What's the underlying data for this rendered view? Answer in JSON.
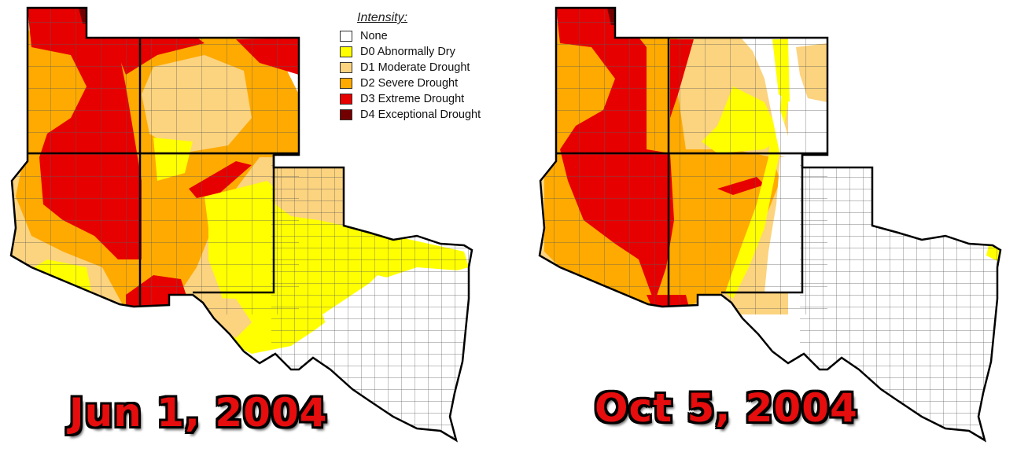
{
  "legend": {
    "title": "Intensity:",
    "items": [
      {
        "label": "None",
        "color": "#ffffff"
      },
      {
        "label": "D0 Abnormally Dry",
        "color": "#ffff00"
      },
      {
        "label": "D1 Moderate Drought",
        "color": "#fcd37f"
      },
      {
        "label": "D2 Severe Drought",
        "color": "#ffaa00"
      },
      {
        "label": "D3 Extreme Drought",
        "color": "#e60000"
      },
      {
        "label": "D4 Exceptional Drought",
        "color": "#730000"
      }
    ]
  },
  "maps": [
    {
      "date": "Jun 1, 2004"
    },
    {
      "date": "Oct 5, 2004"
    }
  ],
  "colors": {
    "none": "#ffffff",
    "d0": "#ffff00",
    "d1": "#fcd37f",
    "d2": "#ffaa00",
    "d3": "#e60000",
    "d4": "#730000",
    "boundary": "#000000",
    "county": "#555555"
  }
}
